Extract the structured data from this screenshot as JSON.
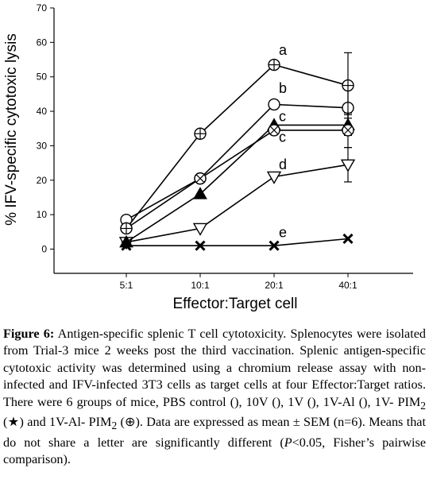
{
  "chart_data": {
    "type": "line",
    "title": "",
    "xlabel": "Effector:Target cell",
    "ylabel": "% IFV-specific cytotoxic lysis",
    "categories": [
      "5:1",
      "10:1",
      "20:1",
      "40:1"
    ],
    "ylim": [
      0,
      70
    ],
    "yticks": [
      0,
      10,
      20,
      30,
      40,
      50,
      60,
      70
    ],
    "grid": false,
    "legend": "none",
    "series": [
      {
        "marker": "x-cross",
        "label": "e",
        "values": [
          1,
          1,
          1,
          3
        ],
        "err": [
          0,
          0,
          0,
          0
        ]
      },
      {
        "marker": "open-triangle-down",
        "label": "d",
        "values": [
          2,
          6,
          21,
          24.5
        ],
        "err": [
          0,
          0,
          0,
          5
        ]
      },
      {
        "marker": "filled-triangle-up",
        "label": "c",
        "values": [
          2,
          16,
          36,
          36
        ],
        "err": [
          0,
          0,
          0,
          3
        ]
      },
      {
        "marker": "open-circle",
        "label": "b",
        "values": [
          8.5,
          20.5,
          42,
          41
        ],
        "err": [
          0,
          0,
          0,
          7
        ]
      },
      {
        "marker": "circle-x",
        "label": "",
        "values": [
          6,
          20.5,
          34.5,
          34.5
        ],
        "err": [
          0,
          0,
          0,
          5
        ]
      },
      {
        "marker": "circle-plus",
        "label": "a",
        "values": [
          6,
          33.5,
          53.5,
          47.5
        ],
        "err": [
          0,
          0,
          0,
          9.5
        ]
      }
    ],
    "annotations": [
      {
        "text": "a",
        "x": "20:1",
        "y": 57.5
      },
      {
        "text": "b",
        "x": "20:1",
        "y": 46.5
      },
      {
        "text": "c",
        "x": "20:1",
        "y": 38.3
      },
      {
        "text": "c",
        "x": "20:1",
        "y": 32.3
      },
      {
        "text": "d",
        "x": "20:1",
        "y": 24.3
      },
      {
        "text": "e",
        "x": "20:1",
        "y": 4.6
      }
    ]
  },
  "caption": {
    "figure_label": "Figure 6:",
    "line1": "Antigen-specific splenic T cell cytotoxicity. Splenocytes were isolated from Trial-3 mice 2 weeks post the third vaccination. Splenic antigen-specific cytotoxic activity was determined using a chromium release assay with non-infected and IFV-infected 3T3 cells as target cells at four Effector:Target ratios. There were 6 groups of mice, PBS control (), 10V (), 1V (), 1V-Al (), 1V- PIM",
    "sub1": "2",
    "line2": " (★) and 1V-Al- PIM",
    "sub2": "2",
    "line3": " (⊕). Data are expressed as mean ± SEM (n=6). Means that do not share a letter are significantly different (",
    "p_italic": "P",
    "line4": "<0.05, Fisher’s pairwise comparison)."
  }
}
